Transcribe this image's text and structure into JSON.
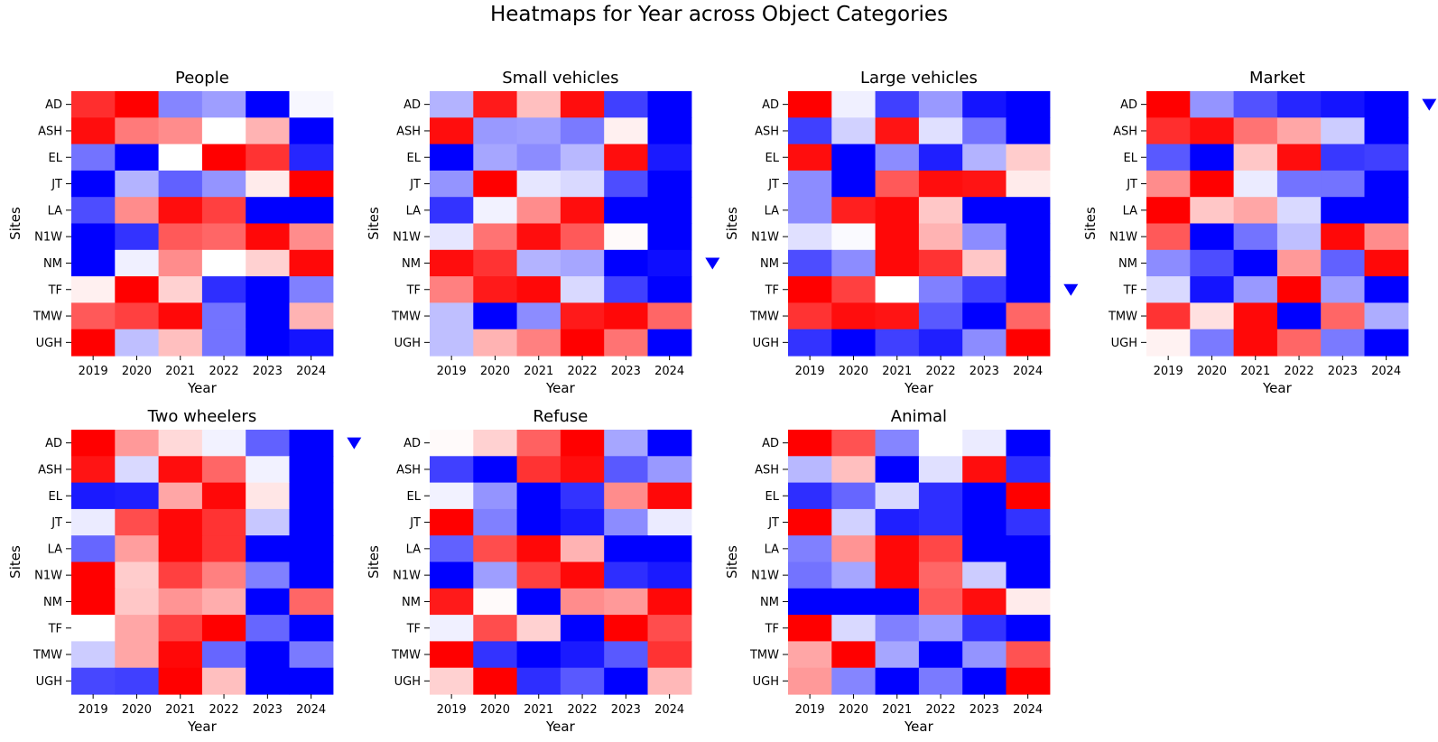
{
  "chart_data": {
    "type": "heatmap",
    "title": "Heatmaps for Year across Object Categories",
    "xlabel": "Year",
    "ylabel": "Sites",
    "x_categories": [
      "2019",
      "2020",
      "2021",
      "2022",
      "2023",
      "2024"
    ],
    "y_categories": [
      "AD",
      "ASH",
      "EL",
      "JT",
      "LA",
      "N1W",
      "NM",
      "TF",
      "TMW",
      "UGH"
    ],
    "colormap": {
      "low": "#0000ff",
      "mid": "#ffffff",
      "high": "#ff0000",
      "scale": "relative (-1 = blue, 0 = white, 1 = red)"
    },
    "marker_color": "#0000ff",
    "marker_symbol": "▼",
    "panels": [
      {
        "title": "People",
        "marker": false,
        "values": [
          [
            0.82,
            1.0,
            -0.48,
            -0.38,
            -1.0,
            -0.03
          ],
          [
            0.95,
            0.52,
            0.45,
            0.0,
            0.3,
            -1.0
          ],
          [
            -0.55,
            -1.0,
            0.0,
            1.0,
            0.8,
            -0.85
          ],
          [
            -1.0,
            -0.3,
            -0.62,
            -0.42,
            0.08,
            1.0
          ],
          [
            -0.7,
            0.45,
            0.95,
            0.75,
            -1.0,
            -1.0
          ],
          [
            -1.0,
            -0.8,
            0.65,
            0.6,
            0.97,
            0.45
          ],
          [
            -1.0,
            -0.06,
            0.45,
            0.0,
            0.18,
            0.97
          ],
          [
            0.06,
            1.0,
            0.18,
            -0.82,
            -1.0,
            -0.5
          ],
          [
            0.65,
            0.75,
            0.97,
            -0.55,
            -1.0,
            0.3
          ],
          [
            1.0,
            -0.25,
            0.25,
            -0.55,
            -1.0,
            -0.92
          ]
        ]
      },
      {
        "title": "Small vehicles",
        "marker": true,
        "values": [
          [
            -0.3,
            0.9,
            0.25,
            0.95,
            -0.75,
            -1.0
          ],
          [
            0.95,
            -0.4,
            -0.38,
            -0.52,
            0.06,
            -1.0
          ],
          [
            -1.0,
            -0.35,
            -0.45,
            -0.28,
            0.95,
            -0.9
          ],
          [
            -0.42,
            1.0,
            -0.1,
            -0.15,
            -0.7,
            -1.0
          ],
          [
            -0.8,
            -0.05,
            0.45,
            0.95,
            -1.0,
            -1.0
          ],
          [
            -0.1,
            0.55,
            0.95,
            0.65,
            0.02,
            -1.0
          ],
          [
            0.95,
            0.8,
            -0.3,
            -0.35,
            -1.0,
            -0.95
          ],
          [
            0.5,
            0.9,
            0.97,
            -0.15,
            -0.75,
            -1.0
          ],
          [
            -0.25,
            -1.0,
            -0.45,
            0.9,
            0.97,
            0.6
          ],
          [
            -0.25,
            0.3,
            0.5,
            1.0,
            0.55,
            -1.0
          ]
        ]
      },
      {
        "title": "Large vehicles",
        "marker": true,
        "values": [
          [
            1.0,
            -0.06,
            -0.75,
            -0.4,
            -0.92,
            -1.0
          ],
          [
            -0.75,
            -0.18,
            0.92,
            -0.12,
            -0.55,
            -1.0
          ],
          [
            0.95,
            -1.0,
            -0.45,
            -0.88,
            -0.3,
            0.2
          ],
          [
            -0.45,
            -1.0,
            0.65,
            0.95,
            0.92,
            0.08
          ],
          [
            -0.45,
            0.88,
            0.97,
            0.22,
            -1.0,
            -1.0
          ],
          [
            -0.12,
            -0.02,
            0.97,
            0.3,
            -0.45,
            -1.0
          ],
          [
            -0.7,
            -0.45,
            0.97,
            0.8,
            0.22,
            -1.0
          ],
          [
            1.0,
            0.75,
            0.0,
            -0.5,
            -0.75,
            -1.0
          ],
          [
            0.8,
            0.95,
            0.92,
            -0.65,
            -1.0,
            0.6
          ],
          [
            -0.8,
            -1.0,
            -0.75,
            -0.88,
            -0.45,
            1.0
          ]
        ]
      },
      {
        "title": "Market",
        "marker": true,
        "values": [
          [
            1.0,
            -0.42,
            -0.68,
            -0.85,
            -0.92,
            -1.0
          ],
          [
            0.82,
            0.95,
            0.55,
            0.35,
            -0.2,
            -1.0
          ],
          [
            -0.65,
            -1.0,
            0.22,
            0.95,
            -0.78,
            -0.75
          ],
          [
            0.45,
            1.0,
            -0.08,
            -0.55,
            -0.55,
            -1.0
          ],
          [
            1.0,
            0.22,
            0.35,
            -0.15,
            -1.0,
            -1.0
          ],
          [
            0.65,
            -1.0,
            -0.55,
            -0.25,
            0.97,
            0.45
          ],
          [
            -0.45,
            -0.7,
            -1.0,
            0.4,
            -0.62,
            0.97
          ],
          [
            -0.15,
            -0.92,
            -0.4,
            1.0,
            -0.38,
            -1.0
          ],
          [
            0.8,
            0.12,
            0.97,
            -1.0,
            0.6,
            -0.32
          ],
          [
            0.05,
            -0.52,
            0.97,
            0.6,
            -0.52,
            -1.0
          ]
        ]
      },
      {
        "title": "Two wheelers",
        "marker": true,
        "values": [
          [
            1.0,
            0.4,
            0.15,
            -0.05,
            -0.62,
            -1.0
          ],
          [
            0.92,
            -0.15,
            0.95,
            0.6,
            -0.05,
            -1.0
          ],
          [
            -0.9,
            -0.88,
            0.35,
            0.97,
            0.1,
            -1.0
          ],
          [
            -0.08,
            0.7,
            0.97,
            0.8,
            -0.22,
            -1.0
          ],
          [
            -0.6,
            0.38,
            0.97,
            0.8,
            -1.0,
            -1.0
          ],
          [
            1.0,
            0.2,
            0.75,
            0.5,
            -0.5,
            -1.0
          ],
          [
            1.0,
            0.22,
            0.42,
            0.32,
            -1.0,
            0.6
          ],
          [
            0.0,
            0.35,
            0.75,
            1.0,
            -0.6,
            -1.0
          ],
          [
            -0.2,
            0.35,
            0.97,
            -0.6,
            -1.0,
            -0.52
          ],
          [
            -0.72,
            -0.75,
            1.0,
            0.25,
            -1.0,
            -1.0
          ]
        ]
      },
      {
        "title": "Refuse",
        "marker": false,
        "values": [
          [
            0.02,
            0.18,
            0.62,
            1.0,
            -0.35,
            -1.0
          ],
          [
            -0.75,
            -1.0,
            0.8,
            0.95,
            -0.65,
            -0.4
          ],
          [
            -0.05,
            -0.42,
            -1.0,
            -0.8,
            0.45,
            0.97
          ],
          [
            1.0,
            -0.5,
            -1.0,
            -0.9,
            -0.45,
            -0.08
          ],
          [
            -0.62,
            0.7,
            0.97,
            0.3,
            -1.0,
            -1.0
          ],
          [
            -1.0,
            -0.38,
            0.75,
            0.97,
            -0.82,
            -0.9
          ],
          [
            0.9,
            0.02,
            -1.0,
            0.45,
            0.4,
            0.97
          ],
          [
            -0.06,
            0.7,
            0.18,
            -1.0,
            1.0,
            0.7
          ],
          [
            1.0,
            -0.8,
            -1.0,
            -0.9,
            -0.65,
            0.8
          ],
          [
            0.18,
            1.0,
            -0.82,
            -0.65,
            -1.0,
            0.28
          ]
        ]
      },
      {
        "title": "Animal",
        "marker": false,
        "values": [
          [
            1.0,
            0.68,
            -0.48,
            0.0,
            -0.08,
            -1.0
          ],
          [
            -0.28,
            0.25,
            -1.0,
            -0.12,
            0.95,
            -0.82
          ],
          [
            -0.82,
            -0.6,
            -0.15,
            -0.82,
            -1.0,
            1.0
          ],
          [
            1.0,
            -0.18,
            -0.88,
            -0.82,
            -1.0,
            -0.8
          ],
          [
            -0.5,
            0.42,
            0.97,
            0.72,
            -1.0,
            -1.0
          ],
          [
            -0.55,
            -0.35,
            0.97,
            0.6,
            -0.2,
            -1.0
          ],
          [
            -1.0,
            -1.0,
            -1.0,
            0.65,
            0.95,
            0.08
          ],
          [
            1.0,
            -0.15,
            -0.5,
            -0.38,
            -0.8,
            -1.0
          ],
          [
            0.35,
            1.0,
            -0.35,
            -1.0,
            -0.42,
            0.68
          ],
          [
            0.4,
            -0.48,
            -1.0,
            -0.52,
            -1.0,
            1.0
          ]
        ]
      }
    ]
  }
}
